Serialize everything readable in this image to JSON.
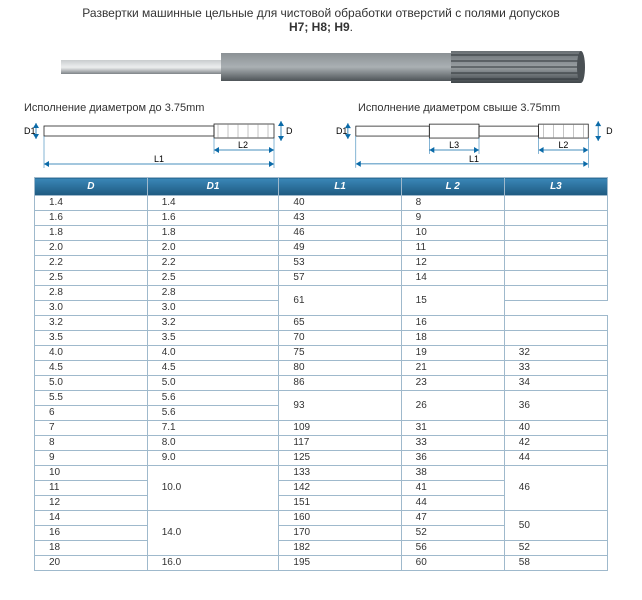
{
  "title_line1": "Развертки машинные цельные для чистовой обработки отверстий с полями допусков",
  "title_line2": "H7; H8; H9",
  "diagram_left_label": "Исполнение диаметром до 3.75mm",
  "diagram_right_label": "Исполнение диаметром свыше 3.75mm",
  "dim_labels": {
    "D": "D",
    "D1": "D1",
    "L1": "L1",
    "L2": "L2",
    "L3": "L3"
  },
  "colors": {
    "header_grad_top": "#3a87b8",
    "header_grad_bot": "#1e5a80",
    "border": "#9fb9cc",
    "dim_line": "#0a6aa8",
    "tool_body": "#6e7478",
    "tool_shank": "#8f9499"
  },
  "table": {
    "columns": [
      "D",
      "D1",
      "L1",
      "L 2",
      "L3"
    ],
    "rows": [
      {
        "D": "1.4",
        "D1": "1.4",
        "L1": "40",
        "L2": "8",
        "L3": ""
      },
      {
        "D": "1.6",
        "D1": "1.6",
        "L1": "43",
        "L2": "9",
        "L3": ""
      },
      {
        "D": "1.8",
        "D1": "1.8",
        "L1": "46",
        "L2": "10",
        "L3": ""
      },
      {
        "D": "2.0",
        "D1": "2.0",
        "L1": "49",
        "L2": "11",
        "L3": ""
      },
      {
        "D": "2.2",
        "D1": "2.2",
        "L1": "53",
        "L2": "12",
        "L3": ""
      },
      {
        "D": "2.5",
        "D1": "2.5",
        "L1": "57",
        "L2": "14",
        "L3": ""
      },
      {
        "D": "2.8",
        "D1": "2.8",
        "L1": "61",
        "L2": "15",
        "L3": "",
        "L1_rs": 2,
        "L2_rs": 2
      },
      {
        "D": "3.0",
        "D1": "3.0"
      },
      {
        "D": "3.2",
        "D1": "3.2",
        "L1": "65",
        "L2": "16",
        "L3": ""
      },
      {
        "D": "3.5",
        "D1": "3.5",
        "L1": "70",
        "L2": "18",
        "L3": ""
      },
      {
        "D": "4.0",
        "D1": "4.0",
        "L1": "75",
        "L2": "19",
        "L3": "32"
      },
      {
        "D": "4.5",
        "D1": "4.5",
        "L1": "80",
        "L2": "21",
        "L3": "33"
      },
      {
        "D": "5.0",
        "D1": "5.0",
        "L1": "86",
        "L2": "23",
        "L3": "34"
      },
      {
        "D": "5.5",
        "D1": "5.6",
        "L1": "93",
        "L2": "26",
        "L3": "36",
        "L1_rs": 2,
        "L2_rs": 2,
        "L3_rs": 2
      },
      {
        "D": "6",
        "D1": "5.6"
      },
      {
        "D": "7",
        "D1": "7.1",
        "L1": "109",
        "L2": "31",
        "L3": "40"
      },
      {
        "D": "8",
        "D1": "8.0",
        "L1": "117",
        "L2": "33",
        "L3": "42"
      },
      {
        "D": "9",
        "D1": "9.0",
        "L1": "125",
        "L2": "36",
        "L3": "44"
      },
      {
        "D": "10",
        "D1": "10.0",
        "L1": "133",
        "L2": "38",
        "L3": "46",
        "D1_rs": 3,
        "L3_rs": 3
      },
      {
        "D": "11",
        "L1": "142",
        "L2": "41"
      },
      {
        "D": "12",
        "L1": "151",
        "L2": "44"
      },
      {
        "D": "14",
        "D1": "14.0",
        "L1": "160",
        "L2": "47",
        "L3": "50",
        "D1_rs": 3,
        "L3_rs": 2
      },
      {
        "D": "16",
        "L1": "170",
        "L2": "52"
      },
      {
        "D": "18",
        "L1": "182",
        "L2": "56",
        "L3": "52"
      },
      {
        "D": "20",
        "D1": "16.0",
        "L1": "195",
        "L2": "60",
        "L3": "58"
      }
    ]
  }
}
